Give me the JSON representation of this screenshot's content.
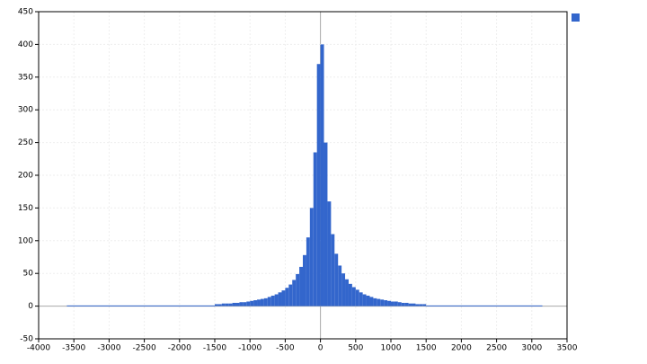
{
  "chart_data": {
    "type": "histogram",
    "bins": [
      -3600,
      -1500,
      -1450,
      -1400,
      -1350,
      -1300,
      -1250,
      -1200,
      -1150,
      -1100,
      -1050,
      -1000,
      -950,
      -900,
      -850,
      -800,
      -750,
      -700,
      -650,
      -600,
      -550,
      -500,
      -450,
      -400,
      -350,
      -300,
      -250,
      -200,
      -150,
      -100,
      -50,
      0,
      50,
      100,
      150,
      200,
      250,
      300,
      350,
      400,
      450,
      500,
      550,
      600,
      650,
      700,
      750,
      800,
      850,
      900,
      950,
      1000,
      1050,
      1100,
      1150,
      1200,
      1250,
      1300,
      1350,
      1400,
      1450,
      1500,
      3150
    ],
    "values": [
      1,
      3,
      3,
      4,
      4,
      4,
      5,
      5,
      6,
      6,
      7,
      8,
      9,
      10,
      11,
      12,
      14,
      16,
      18,
      21,
      24,
      28,
      33,
      40,
      49,
      60,
      78,
      105,
      150,
      235,
      370,
      400,
      250,
      160,
      110,
      80,
      62,
      50,
      41,
      34,
      29,
      25,
      21,
      18,
      16,
      14,
      12,
      11,
      10,
      9,
      8,
      7,
      7,
      6,
      5,
      5,
      4,
      4,
      3,
      3,
      3,
      1
    ],
    "color": "#3366cc",
    "xlim": [
      -4000,
      3500
    ],
    "xticks": [
      -4000,
      -3500,
      -3000,
      -2500,
      -2000,
      -1500,
      -1000,
      -500,
      0,
      500,
      1000,
      1500,
      2000,
      2500,
      3000,
      3500
    ],
    "ylim": [
      -50,
      450
    ],
    "yticks": [
      -50,
      0,
      50,
      100,
      150,
      200,
      250,
      300,
      350,
      400,
      450
    ],
    "grid": true
  }
}
